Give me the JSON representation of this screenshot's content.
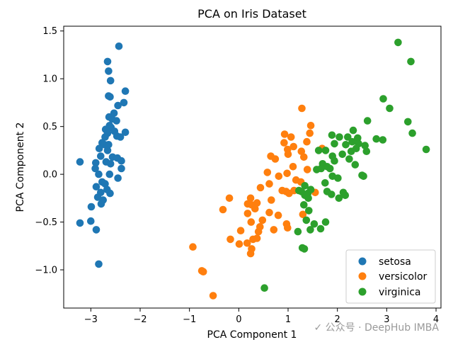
{
  "chart_data": {
    "type": "scatter",
    "title": "PCA on Iris Dataset",
    "xlabel": "PCA Component 1",
    "ylabel": "PCA Component 2",
    "xlim": [
      -3.55,
      4.1
    ],
    "ylim": [
      -1.4,
      1.55
    ],
    "xticks": [
      -3,
      -2,
      -1,
      0,
      1,
      2,
      3,
      4
    ],
    "yticks": [
      -1.0,
      -0.5,
      0.0,
      0.5,
      1.0,
      1.5
    ],
    "xtick_labels": [
      "−3",
      "−2",
      "−1",
      "0",
      "1",
      "2",
      "3",
      "4"
    ],
    "ytick_labels": [
      "−1.0",
      "−0.5",
      "0.0",
      "0.5",
      "1.0",
      "1.5"
    ],
    "grid": false,
    "legend_position": "lower-right",
    "series": [
      {
        "name": "setosa",
        "color": "#1f77b4",
        "points": [
          [
            -2.43,
            1.34
          ],
          [
            -2.66,
            1.18
          ],
          [
            -2.64,
            1.08
          ],
          [
            -2.6,
            0.98
          ],
          [
            -2.64,
            0.82
          ],
          [
            -2.61,
            0.81
          ],
          [
            -2.3,
            0.87
          ],
          [
            -2.33,
            0.75
          ],
          [
            -2.45,
            0.72
          ],
          [
            -2.53,
            0.64
          ],
          [
            -2.63,
            0.6
          ],
          [
            -2.57,
            0.58
          ],
          [
            -2.48,
            0.56
          ],
          [
            -2.62,
            0.51
          ],
          [
            -2.59,
            0.49
          ],
          [
            -2.7,
            0.47
          ],
          [
            -2.52,
            0.45
          ],
          [
            -2.66,
            0.43
          ],
          [
            -2.47,
            0.4
          ],
          [
            -2.4,
            0.39
          ],
          [
            -2.3,
            0.44
          ],
          [
            -2.71,
            0.39
          ],
          [
            -2.77,
            0.33
          ],
          [
            -2.83,
            0.27
          ],
          [
            -2.72,
            0.31
          ],
          [
            -2.64,
            0.31
          ],
          [
            -2.66,
            0.25
          ],
          [
            -2.56,
            0.18
          ],
          [
            -2.8,
            0.19
          ],
          [
            -2.9,
            0.12
          ],
          [
            -2.46,
            0.17
          ],
          [
            -2.38,
            0.14
          ],
          [
            -2.69,
            0.13
          ],
          [
            -2.6,
            0.11
          ],
          [
            -2.91,
            0.06
          ],
          [
            -2.38,
            0.06
          ],
          [
            -2.62,
            0.0
          ],
          [
            -2.84,
            0.0
          ],
          [
            -3.22,
            0.13
          ],
          [
            -2.77,
            -0.08
          ],
          [
            -2.45,
            -0.04
          ],
          [
            -2.71,
            -0.1
          ],
          [
            -2.89,
            -0.13
          ],
          [
            -2.67,
            -0.16
          ],
          [
            -2.8,
            -0.19
          ],
          [
            -2.86,
            -0.24
          ],
          [
            -2.61,
            -0.2
          ],
          [
            -2.75,
            -0.27
          ],
          [
            -2.79,
            -0.31
          ],
          [
            -2.99,
            -0.34
          ],
          [
            -3.22,
            -0.51
          ],
          [
            -3.0,
            -0.49
          ],
          [
            -2.89,
            -0.58
          ],
          [
            -2.84,
            -0.94
          ]
        ]
      },
      {
        "name": "versicolor",
        "color": "#ff7f0e",
        "points": [
          [
            1.28,
            0.69
          ],
          [
            1.46,
            0.51
          ],
          [
            0.93,
            0.42
          ],
          [
            1.44,
            0.43
          ],
          [
            1.06,
            0.39
          ],
          [
            1.38,
            0.34
          ],
          [
            0.92,
            0.33
          ],
          [
            1.11,
            0.29
          ],
          [
            0.99,
            0.26
          ],
          [
            1.27,
            0.24
          ],
          [
            1.69,
            0.27
          ],
          [
            0.65,
            0.19
          ],
          [
            1.0,
            0.21
          ],
          [
            1.32,
            0.18
          ],
          [
            0.74,
            0.16
          ],
          [
            1.1,
            0.08
          ],
          [
            0.58,
            0.02
          ],
          [
            0.98,
            0.01
          ],
          [
            1.39,
            0.05
          ],
          [
            0.81,
            -0.02
          ],
          [
            1.16,
            -0.06
          ],
          [
            1.26,
            -0.08
          ],
          [
            0.62,
            -0.1
          ],
          [
            0.96,
            -0.18
          ],
          [
            1.12,
            -0.17
          ],
          [
            0.44,
            -0.14
          ],
          [
            0.66,
            -0.27
          ],
          [
            1.02,
            -0.2
          ],
          [
            1.55,
            -0.19
          ],
          [
            0.88,
            -0.17
          ],
          [
            0.24,
            -0.25
          ],
          [
            -0.19,
            -0.25
          ],
          [
            0.18,
            -0.31
          ],
          [
            0.26,
            -0.32
          ],
          [
            0.33,
            -0.36
          ],
          [
            0.37,
            -0.3
          ],
          [
            -0.32,
            -0.37
          ],
          [
            0.62,
            -0.4
          ],
          [
            0.8,
            -0.43
          ],
          [
            1.3,
            -0.42
          ],
          [
            0.18,
            -0.41
          ],
          [
            0.48,
            -0.48
          ],
          [
            0.25,
            -0.5
          ],
          [
            0.97,
            -0.52
          ],
          [
            0.43,
            -0.55
          ],
          [
            0.71,
            -0.58
          ],
          [
            0.4,
            -0.6
          ],
          [
            0.99,
            -0.56
          ],
          [
            0.04,
            -0.59
          ],
          [
            -0.17,
            -0.68
          ],
          [
            0.29,
            -0.68
          ],
          [
            0.17,
            -0.72
          ],
          [
            0.37,
            -0.67
          ],
          [
            0.01,
            -0.73
          ],
          [
            0.26,
            -0.78
          ],
          [
            0.24,
            -0.83
          ],
          [
            -0.93,
            -0.76
          ],
          [
            -0.75,
            -1.01
          ],
          [
            -0.72,
            -1.02
          ],
          [
            -0.52,
            -1.27
          ]
        ]
      },
      {
        "name": "virginica",
        "color": "#2ca02c",
        "points": [
          [
            3.23,
            1.38
          ],
          [
            3.49,
            1.18
          ],
          [
            2.93,
            0.79
          ],
          [
            3.06,
            0.69
          ],
          [
            3.43,
            0.55
          ],
          [
            2.61,
            0.56
          ],
          [
            3.52,
            0.43
          ],
          [
            2.32,
            0.46
          ],
          [
            2.41,
            0.38
          ],
          [
            2.92,
            0.36
          ],
          [
            2.79,
            0.37
          ],
          [
            1.89,
            0.41
          ],
          [
            2.04,
            0.39
          ],
          [
            2.21,
            0.39
          ],
          [
            2.3,
            0.34
          ],
          [
            2.43,
            0.32
          ],
          [
            2.28,
            0.24
          ],
          [
            2.56,
            0.3
          ],
          [
            2.59,
            0.24
          ],
          [
            1.94,
            0.32
          ],
          [
            2.17,
            0.31
          ],
          [
            2.38,
            0.27
          ],
          [
            1.62,
            0.25
          ],
          [
            1.76,
            0.25
          ],
          [
            1.9,
            0.19
          ],
          [
            2.1,
            0.21
          ],
          [
            2.24,
            0.16
          ],
          [
            1.94,
            0.14
          ],
          [
            2.36,
            0.1
          ],
          [
            1.85,
            0.06
          ],
          [
            1.79,
            0.08
          ],
          [
            1.7,
            0.11
          ],
          [
            3.8,
            0.26
          ],
          [
            1.58,
            0.05
          ],
          [
            1.67,
            0.06
          ],
          [
            2.5,
            -0.01
          ],
          [
            1.75,
            -0.09
          ],
          [
            1.9,
            -0.02
          ],
          [
            2.01,
            -0.04
          ],
          [
            2.53,
            -0.02
          ],
          [
            1.22,
            -0.17
          ],
          [
            1.34,
            -0.12
          ],
          [
            1.27,
            -0.18
          ],
          [
            1.34,
            -0.22
          ],
          [
            1.4,
            -0.2
          ],
          [
            1.46,
            -0.16
          ],
          [
            1.41,
            -0.25
          ],
          [
            2.12,
            -0.19
          ],
          [
            1.88,
            -0.21
          ],
          [
            2.03,
            -0.25
          ],
          [
            2.16,
            -0.22
          ],
          [
            1.79,
            -0.18
          ],
          [
            1.32,
            -0.32
          ],
          [
            1.42,
            -0.38
          ],
          [
            1.37,
            -0.48
          ],
          [
            1.53,
            -0.52
          ],
          [
            1.76,
            -0.5
          ],
          [
            1.66,
            -0.57
          ],
          [
            1.45,
            -0.58
          ],
          [
            1.2,
            -0.6
          ],
          [
            1.29,
            -0.77
          ],
          [
            1.33,
            -0.78
          ],
          [
            0.52,
            -1.19
          ]
        ]
      }
    ]
  },
  "watermark": "✓ 公众号 · DeepHub IMBA"
}
